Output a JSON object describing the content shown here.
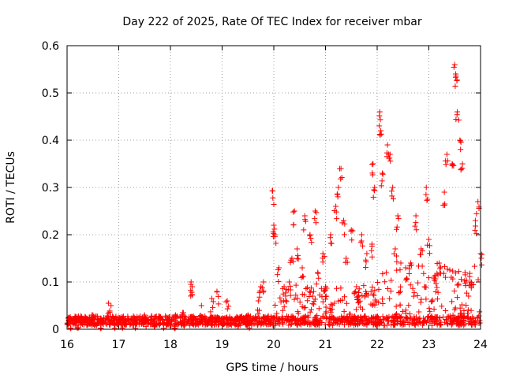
{
  "chart_data": {
    "type": "scatter",
    "title": "Day 222 of 2025, Rate Of TEC Index for receiver mbar",
    "xlabel": "GPS time / hours",
    "ylabel": "ROTI / TECUs",
    "xlim": [
      16,
      24
    ],
    "ylim": [
      0,
      0.6
    ],
    "x_ticks": [
      "16",
      "17",
      "18",
      "19",
      "20",
      "21",
      "22",
      "23",
      "24"
    ],
    "y_ticks": [
      "0",
      "0.1",
      "0.2",
      "0.3",
      "0.4",
      "0.5",
      "0.6"
    ],
    "grid": true,
    "marker": "+",
    "series": [
      {
        "name": "ROTI",
        "color": "#ff0000",
        "points": [
          [
            16.05,
            0.012
          ],
          [
            16.2,
            0.018
          ],
          [
            16.35,
            0.025
          ],
          [
            16.5,
            0.03
          ],
          [
            16.65,
            0.02
          ],
          [
            16.8,
            0.055
          ],
          [
            16.85,
            0.05
          ],
          [
            16.95,
            0.022
          ],
          [
            17.1,
            0.02
          ],
          [
            17.3,
            0.025
          ],
          [
            17.5,
            0.03
          ],
          [
            17.7,
            0.022
          ],
          [
            17.9,
            0.028
          ],
          [
            18.1,
            0.03
          ],
          [
            18.25,
            0.035
          ],
          [
            18.4,
            0.1
          ],
          [
            18.42,
            0.09
          ],
          [
            18.6,
            0.05
          ],
          [
            18.8,
            0.065
          ],
          [
            18.9,
            0.08
          ],
          [
            19.1,
            0.06
          ],
          [
            19.3,
            0.025
          ],
          [
            19.5,
            0.03
          ],
          [
            19.7,
            0.06
          ],
          [
            19.75,
            0.09
          ],
          [
            19.8,
            0.1
          ],
          [
            19.97,
            0.293
          ],
          [
            20.0,
            0.22
          ],
          [
            20.02,
            0.2
          ],
          [
            20.1,
            0.13
          ],
          [
            20.2,
            0.09
          ],
          [
            20.3,
            0.1
          ],
          [
            20.35,
            0.15
          ],
          [
            20.4,
            0.25
          ],
          [
            20.45,
            0.17
          ],
          [
            20.55,
            0.13
          ],
          [
            20.6,
            0.24
          ],
          [
            20.7,
            0.2
          ],
          [
            20.75,
            0.07
          ],
          [
            20.8,
            0.25
          ],
          [
            20.85,
            0.12
          ],
          [
            20.95,
            0.16
          ],
          [
            21.0,
            0.09
          ],
          [
            21.1,
            0.2
          ],
          [
            21.2,
            0.26
          ],
          [
            21.25,
            0.3
          ],
          [
            21.3,
            0.34
          ],
          [
            21.35,
            0.23
          ],
          [
            21.4,
            0.15
          ],
          [
            21.5,
            0.21
          ],
          [
            21.6,
            0.09
          ],
          [
            21.7,
            0.2
          ],
          [
            21.8,
            0.16
          ],
          [
            21.9,
            0.18
          ],
          [
            21.92,
            0.35
          ],
          [
            21.95,
            0.3
          ],
          [
            22.05,
            0.46
          ],
          [
            22.07,
            0.42
          ],
          [
            22.1,
            0.33
          ],
          [
            22.2,
            0.39
          ],
          [
            22.25,
            0.37
          ],
          [
            22.3,
            0.3
          ],
          [
            22.35,
            0.17
          ],
          [
            22.4,
            0.24
          ],
          [
            22.45,
            0.08
          ],
          [
            22.55,
            0.13
          ],
          [
            22.65,
            0.14
          ],
          [
            22.75,
            0.24
          ],
          [
            22.85,
            0.17
          ],
          [
            22.95,
            0.3
          ],
          [
            23.0,
            0.19
          ],
          [
            23.1,
            0.11
          ],
          [
            23.2,
            0.14
          ],
          [
            23.3,
            0.29
          ],
          [
            23.35,
            0.37
          ],
          [
            23.45,
            0.35
          ],
          [
            23.5,
            0.56
          ],
          [
            23.52,
            0.54
          ],
          [
            23.55,
            0.46
          ],
          [
            23.6,
            0.4
          ],
          [
            23.65,
            0.35
          ],
          [
            23.7,
            0.12
          ],
          [
            23.8,
            0.1
          ],
          [
            23.9,
            0.23
          ],
          [
            23.95,
            0.27
          ],
          [
            24.0,
            0.16
          ]
        ]
      }
    ],
    "background_noise": {
      "baseline": 0.02,
      "spread": 0.02
    }
  }
}
